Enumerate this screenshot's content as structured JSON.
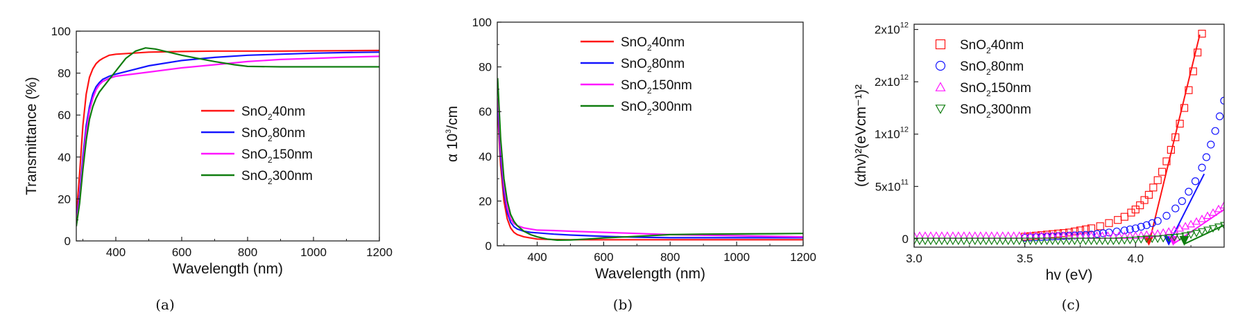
{
  "colors": {
    "sno2_40nm": "#ff1414",
    "sno2_80nm": "#1414ff",
    "sno2_150nm": "#ff14ff",
    "sno2_300nm": "#0f7d0f"
  },
  "chart_data": [
    {
      "id": "a",
      "type": "line",
      "caption": "(a)",
      "xlabel": "Wavelength (nm)",
      "ylabel": "Transmittance (%)",
      "xlim": [
        280,
        1200
      ],
      "ylim": [
        0,
        100
      ],
      "xticks": [
        400,
        600,
        800,
        1000,
        1200
      ],
      "yticks": [
        0,
        20,
        40,
        60,
        80,
        100
      ],
      "legend_position": "center-right",
      "series": [
        {
          "name": "SnO2 40nm",
          "base": "SnO",
          "sub": "2",
          "suffix": "40nm",
          "color": "#ff1414",
          "x": [
            280,
            290,
            300,
            310,
            320,
            330,
            340,
            350,
            360,
            380,
            400,
            450,
            500,
            600,
            700,
            800,
            900,
            1000,
            1100,
            1200
          ],
          "y": [
            12,
            32,
            55,
            70,
            78,
            82,
            84.5,
            86,
            87,
            88.5,
            89,
            89.5,
            90,
            90.3,
            90.5,
            90.5,
            90.5,
            90.6,
            90.7,
            90.8
          ]
        },
        {
          "name": "SnO2 80nm",
          "base": "SnO",
          "sub": "2",
          "suffix": "80nm",
          "color": "#1414ff",
          "x": [
            280,
            290,
            300,
            310,
            320,
            330,
            340,
            350,
            360,
            380,
            400,
            450,
            500,
            600,
            700,
            800,
            900,
            1000,
            1100,
            1200
          ],
          "y": [
            10,
            22,
            40,
            55,
            64,
            70,
            73.5,
            75.5,
            77,
            78.5,
            79.5,
            81.5,
            83.5,
            86,
            87.5,
            88.5,
            89,
            89.5,
            89.8,
            90
          ]
        },
        {
          "name": "SnO2 150nm",
          "base": "SnO",
          "sub": "2",
          "suffix": "150nm",
          "color": "#ff14ff",
          "x": [
            280,
            290,
            300,
            310,
            320,
            330,
            340,
            350,
            360,
            380,
            400,
            450,
            500,
            600,
            700,
            800,
            900,
            1000,
            1100,
            1200
          ],
          "y": [
            9,
            20,
            37,
            52,
            62,
            68,
            72,
            74.5,
            76,
            77.5,
            78.5,
            79.5,
            80.5,
            82.5,
            84,
            85.5,
            86.5,
            87,
            87.6,
            88
          ]
        },
        {
          "name": "SnO2 300nm",
          "base": "SnO",
          "sub": "2",
          "suffix": "300nm",
          "color": "#0f7d0f",
          "x": [
            280,
            290,
            300,
            310,
            320,
            330,
            340,
            350,
            360,
            380,
            400,
            430,
            460,
            490,
            520,
            560,
            600,
            650,
            700,
            760,
            800,
            900,
            1000,
            1100,
            1200
          ],
          "y": [
            7,
            18,
            34,
            48,
            58,
            64,
            68,
            71,
            73,
            77,
            81,
            87,
            90.5,
            92,
            91.5,
            90,
            88.5,
            87,
            85.5,
            84,
            83.2,
            83,
            83,
            83,
            83
          ]
        }
      ]
    },
    {
      "id": "b",
      "type": "line",
      "caption": "(b)",
      "xlabel": "Wavelength (nm)",
      "ylabel": "α 10³/cm",
      "ylabel_base": "α 10",
      "ylabel_sup": "3",
      "ylabel_tail": "/cm",
      "xlim": [
        280,
        1200
      ],
      "ylim": [
        0,
        100
      ],
      "xticks": [
        400,
        600,
        800,
        1000,
        1200
      ],
      "yticks": [
        0,
        20,
        40,
        60,
        80,
        100
      ],
      "legend_position": "top-right",
      "series": [
        {
          "name": "SnO2 40nm",
          "base": "SnO",
          "sub": "2",
          "suffix": "40nm",
          "color": "#ff1414",
          "x": [
            282,
            290,
            300,
            310,
            320,
            330,
            340,
            360,
            380,
            400,
            450,
            500,
            600,
            700,
            800,
            900,
            1000,
            1100,
            1200
          ],
          "y": [
            58,
            36,
            20,
            12,
            8,
            6,
            5,
            4,
            3.5,
            3,
            2.8,
            2.7,
            2.7,
            2.7,
            2.7,
            2.7,
            2.7,
            2.7,
            2.7
          ]
        },
        {
          "name": "SnO2 80nm",
          "base": "SnO",
          "sub": "2",
          "suffix": "80nm",
          "color": "#1414ff",
          "x": [
            282,
            290,
            300,
            310,
            320,
            330,
            340,
            360,
            380,
            400,
            450,
            500,
            600,
            700,
            800,
            900,
            1000,
            1100,
            1200
          ],
          "y": [
            62,
            40,
            24,
            15,
            10.5,
            8.5,
            7.5,
            6.5,
            6,
            5.8,
            5.2,
            4.8,
            4.2,
            3.8,
            3.6,
            3.6,
            3.6,
            3.6,
            3.6
          ]
        },
        {
          "name": "SnO2 150nm",
          "base": "SnO",
          "sub": "2",
          "suffix": "150nm",
          "color": "#ff14ff",
          "x": [
            282,
            290,
            300,
            310,
            320,
            330,
            340,
            360,
            380,
            400,
            450,
            500,
            600,
            700,
            800,
            900,
            1000,
            1100,
            1200
          ],
          "y": [
            66,
            44,
            27,
            17,
            12,
            10,
            9,
            8,
            7.5,
            7,
            6.8,
            6.5,
            6,
            5.5,
            5,
            4.7,
            4.5,
            4.2,
            4
          ]
        },
        {
          "name": "SnO2 300nm",
          "base": "SnO",
          "sub": "2",
          "suffix": "300nm",
          "color": "#0f7d0f",
          "x": [
            281,
            290,
            300,
            310,
            320,
            330,
            340,
            360,
            380,
            400,
            430,
            460,
            500,
            550,
            600,
            700,
            800,
            900,
            1000,
            1100,
            1200
          ],
          "y": [
            75,
            48,
            30,
            20,
            14,
            11,
            9,
            6.5,
            5,
            4,
            3,
            2.5,
            2.6,
            3,
            3.5,
            4.2,
            5,
            5.2,
            5.3,
            5.4,
            5.5
          ]
        }
      ]
    },
    {
      "id": "c",
      "type": "scatter",
      "caption": "(c)",
      "xlabel": "hv (eV)",
      "ylabel": "(αhv)²(eVcm⁻¹)²",
      "xlim": [
        3.0,
        4.4
      ],
      "ylim": [
        -0.08,
        2.05
      ],
      "xticks": [
        3.0,
        3.5,
        4.0
      ],
      "ytick_values": [
        0,
        0.5,
        1.0,
        1.5,
        2.0
      ],
      "ytick_labels": [
        {
          "base": "0",
          "sup": ""
        },
        {
          "base": "5x10",
          "sup": "11"
        },
        {
          "base": "1x10",
          "sup": "12"
        },
        {
          "base": "2x10",
          "sup": "12"
        },
        {
          "base": "2x10",
          "sup": "12"
        }
      ],
      "y_unit": "1e12 (eVcm^-1)^2",
      "legend_position": "top-left",
      "series": [
        {
          "name": "SnO2 40nm",
          "base": "SnO",
          "sub": "2",
          "suffix": "40nm",
          "color": "#ff1414",
          "marker": "square",
          "fit": {
            "x": [
              4.06,
              4.29
            ],
            "y": [
              -0.05,
              1.95
            ]
          },
          "arrow_x": 4.06,
          "x": [
            3.5,
            3.55,
            3.6,
            3.65,
            3.7,
            3.75,
            3.8,
            3.84,
            3.88,
            3.92,
            3.95,
            3.98,
            4.0,
            4.02,
            4.04,
            4.06,
            4.08,
            4.1,
            4.12,
            4.14,
            4.16,
            4.18,
            4.2,
            4.22,
            4.24,
            4.26,
            4.28,
            4.3
          ],
          "y": [
            0.02,
            0.03,
            0.04,
            0.05,
            0.06,
            0.08,
            0.1,
            0.12,
            0.15,
            0.18,
            0.21,
            0.25,
            0.28,
            0.32,
            0.37,
            0.42,
            0.49,
            0.56,
            0.64,
            0.74,
            0.85,
            0.97,
            1.1,
            1.25,
            1.42,
            1.6,
            1.78,
            1.96
          ]
        },
        {
          "name": "SnO2 80nm",
          "base": "SnO",
          "sub": "2",
          "suffix": "80nm",
          "color": "#1414ff",
          "marker": "circle",
          "fit": {
            "x": [
              4.15,
              4.31
            ],
            "y": [
              -0.05,
              0.62
            ]
          },
          "arrow_x": 4.15,
          "x": [
            3.5,
            3.6,
            3.7,
            3.8,
            3.88,
            3.95,
            4.0,
            4.05,
            4.1,
            4.14,
            4.18,
            4.21,
            4.24,
            4.27,
            4.3,
            4.32,
            4.34,
            4.36,
            4.38,
            4.4
          ],
          "y": [
            0.01,
            0.02,
            0.03,
            0.04,
            0.06,
            0.08,
            0.1,
            0.13,
            0.17,
            0.22,
            0.29,
            0.36,
            0.45,
            0.55,
            0.68,
            0.78,
            0.9,
            1.03,
            1.17,
            1.32
          ]
        },
        {
          "name": "SnO2 150nm",
          "base": "SnO",
          "sub": "2",
          "suffix": "150nm",
          "color": "#ff14ff",
          "marker": "triangle-up",
          "fit": {
            "x": [
              4.17,
              4.4
            ],
            "y": [
              -0.05,
              0.28
            ]
          },
          "arrow_x": 4.17,
          "x": [
            3.0,
            3.1,
            3.2,
            3.3,
            3.4,
            3.5,
            3.6,
            3.7,
            3.8,
            3.9,
            4.0,
            4.05,
            4.1,
            4.15,
            4.2,
            4.25,
            4.3,
            4.35,
            4.4
          ],
          "y": [
            0.03,
            0.03,
            0.03,
            0.03,
            0.03,
            0.03,
            0.03,
            0.03,
            0.03,
            0.03,
            0.03,
            0.04,
            0.05,
            0.07,
            0.1,
            0.14,
            0.19,
            0.25,
            0.32
          ]
        },
        {
          "name": "SnO2 300nm",
          "base": "SnO",
          "sub": "2",
          "suffix": "300nm",
          "color": "#0f7d0f",
          "marker": "triangle-down",
          "fit": {
            "x": [
              4.22,
              4.4
            ],
            "y": [
              -0.05,
              0.13
            ]
          },
          "arrow_x": 4.22,
          "x": [
            3.0,
            3.1,
            3.2,
            3.3,
            3.4,
            3.5,
            3.6,
            3.7,
            3.8,
            3.9,
            4.0,
            4.05,
            4.1,
            4.15,
            4.2,
            4.25,
            4.3,
            4.35,
            4.4
          ],
          "y": [
            -0.02,
            -0.02,
            -0.02,
            -0.02,
            -0.02,
            -0.02,
            -0.02,
            -0.02,
            -0.02,
            -0.02,
            -0.01,
            0.0,
            0.0,
            0.01,
            0.02,
            0.04,
            0.07,
            0.1,
            0.13
          ]
        }
      ]
    }
  ]
}
